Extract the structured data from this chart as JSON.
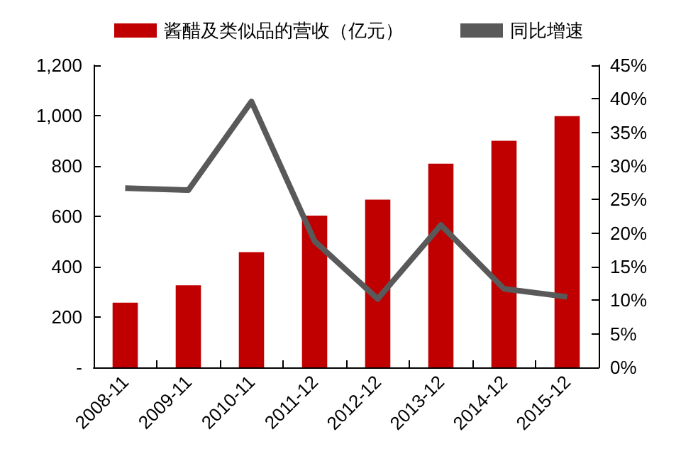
{
  "chart_data": {
    "type": "bar",
    "categories": [
      "2008-11",
      "2009-11",
      "2010-11",
      "2011-12",
      "2012-12",
      "2013-12",
      "2014-12",
      "2015-12"
    ],
    "series": [
      {
        "name": "酱醋及类似品的营收（亿元）",
        "color": "#c00000",
        "values": [
          257,
          326,
          458,
          603,
          666,
          809,
          900,
          998
        ]
      },
      {
        "name": "同比增速",
        "type": "line",
        "axis": "y2",
        "color": "#595959",
        "values": [
          26.7,
          26.4,
          39.6,
          18.8,
          10.2,
          21.2,
          11.7,
          10.5
        ]
      }
    ],
    "ylim": [
      0,
      1200
    ],
    "yticks": [
      {
        "value": 0,
        "label": "-"
      },
      {
        "value": 200,
        "label": "200"
      },
      {
        "value": 400,
        "label": "400"
      },
      {
        "value": 600,
        "label": "600"
      },
      {
        "value": 800,
        "label": "800"
      },
      {
        "value": 1000,
        "label": "1,000"
      },
      {
        "value": 1200,
        "label": "1,200"
      }
    ],
    "y2lim": [
      0,
      45
    ],
    "y2ticks": [
      {
        "value": 0,
        "label": "0%"
      },
      {
        "value": 5,
        "label": "5%"
      },
      {
        "value": 10,
        "label": "10%"
      },
      {
        "value": 15,
        "label": "15%"
      },
      {
        "value": 20,
        "label": "20%"
      },
      {
        "value": 25,
        "label": "25%"
      },
      {
        "value": 30,
        "label": "30%"
      },
      {
        "value": 35,
        "label": "35%"
      },
      {
        "value": 40,
        "label": "40%"
      },
      {
        "value": 45,
        "label": "45%"
      }
    ],
    "legend": "top",
    "grid": false,
    "marker": "none",
    "line_style": "solid"
  }
}
